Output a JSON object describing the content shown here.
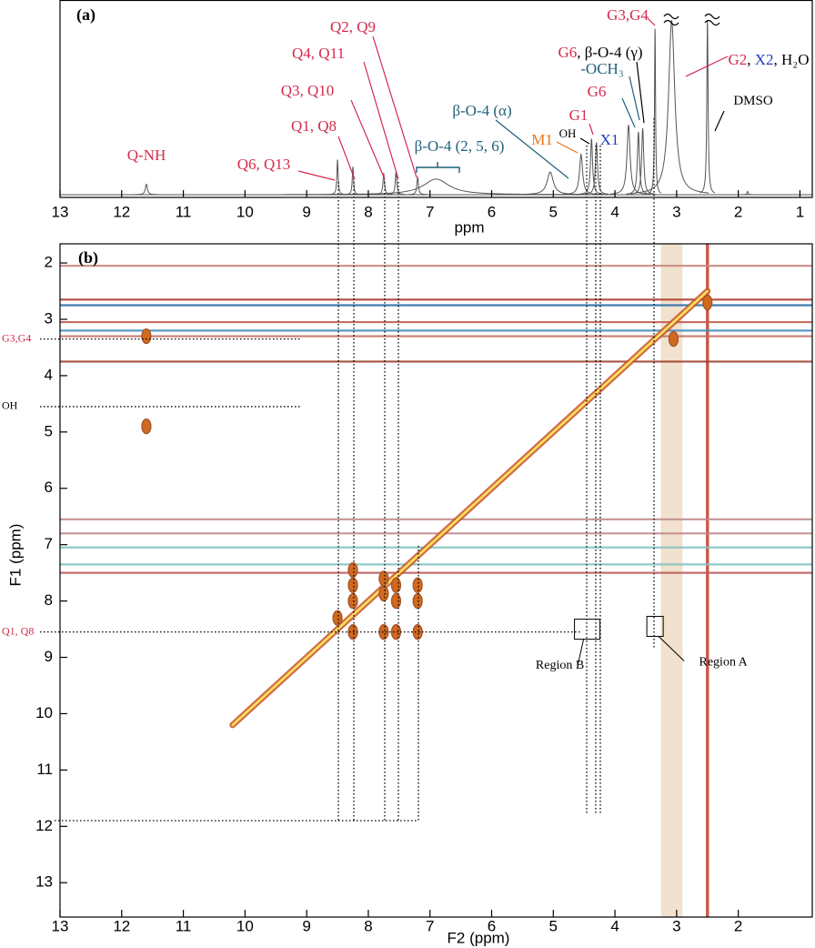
{
  "chart_data": [
    {
      "type": "spectrum",
      "panel_label": "(a)",
      "x_label": "ppm",
      "xlim": [
        13,
        0.8
      ],
      "xticks": [
        13,
        12,
        11,
        10,
        9,
        8,
        7,
        6,
        5,
        4,
        3,
        2,
        1
      ],
      "ylim": [
        0,
        100
      ],
      "color": "#555555",
      "x": [
        11.6,
        8.5,
        8.25,
        7.75,
        7.55,
        7.2,
        6.9,
        5.05,
        4.55,
        4.38,
        4.3,
        3.78,
        3.62,
        3.55,
        3.35,
        3.08,
        2.5,
        1.85
      ],
      "values": [
        6,
        20,
        16,
        12,
        13,
        10,
        9,
        13,
        23,
        32,
        30,
        40,
        36,
        38,
        95,
        100,
        100,
        2
      ],
      "widths": [
        0.02,
        0.012,
        0.012,
        0.015,
        0.015,
        0.015,
        0.25,
        0.06,
        0.03,
        0.02,
        0.02,
        0.03,
        0.02,
        0.02,
        0.01,
        0.06,
        0.012,
        0.01
      ],
      "annotations": [
        {
          "parts": [
            {
              "text": "Q-NH",
              "color": "#d42a4c"
            }
          ]
        },
        {
          "parts": [
            {
              "text": "Q6, Q13",
              "color": "#d42a4c"
            }
          ]
        },
        {
          "parts": [
            {
              "text": "Q1, Q8",
              "color": "#d42a4c"
            }
          ]
        },
        {
          "parts": [
            {
              "text": "Q3, Q10",
              "color": "#d42a4c"
            }
          ]
        },
        {
          "parts": [
            {
              "text": "Q4, Q11",
              "color": "#d42a4c"
            }
          ]
        },
        {
          "parts": [
            {
              "text": "Q2, Q9",
              "color": "#d42a4c"
            }
          ]
        },
        {
          "parts": [
            {
              "text": "β-O-4 (2, 5, 6)",
              "color": "#1f5f7a"
            }
          ]
        },
        {
          "parts": [
            {
              "text": "β-O-4 (α)",
              "color": "#1f5f7a"
            }
          ]
        },
        {
          "parts": [
            {
              "text": "M1",
              "color": "#e8731a"
            }
          ]
        },
        {
          "parts": [
            {
              "text": "OH",
              "color": "#000000"
            }
          ]
        },
        {
          "parts": [
            {
              "text": "G1",
              "color": "#d42a4c"
            }
          ]
        },
        {
          "parts": [
            {
              "text": "X1",
              "color": "#1f3fbf"
            }
          ]
        },
        {
          "parts": [
            {
              "text": "G6",
              "color": "#d42a4c"
            }
          ]
        },
        {
          "parts": [
            {
              "text": "-OCH₃",
              "color": "#1f5f7a"
            }
          ]
        },
        {
          "parts": [
            {
              "text": "G6",
              "color": "#d42a4c"
            },
            {
              "text": ", β-O-4 (γ)",
              "color": "#000000"
            }
          ]
        },
        {
          "parts": [
            {
              "text": "G3,G4",
              "color": "#d42a4c"
            }
          ]
        },
        {
          "parts": [
            {
              "text": "G2",
              "color": "#d42a4c"
            },
            {
              "text": ", ",
              "color": "#000000"
            },
            {
              "text": "X2",
              "color": "#1f3fbf"
            },
            {
              "text": ", H₂O",
              "color": "#000000"
            }
          ]
        },
        {
          "parts": [
            {
              "text": "DMSO",
              "color": "#000000"
            }
          ]
        }
      ]
    },
    {
      "type": "contour",
      "panel_label": "(b)",
      "x_label": "F2 (ppm)",
      "y_label": "F1 (ppm)",
      "xlim": [
        13,
        0.8
      ],
      "xticks": [
        13,
        12,
        11,
        10,
        9,
        8,
        7,
        6,
        5,
        4,
        3,
        2
      ],
      "ylim": [
        1.66,
        13.61
      ],
      "yticks": [
        2,
        3,
        4,
        5,
        6,
        7,
        8,
        9,
        10,
        11,
        12,
        13
      ],
      "diagonal": [
        10.2,
        2.5
      ],
      "cross_peaks": {
        "x": [
          8.25,
          8.25,
          8.25,
          7.75,
          7.75,
          7.55,
          7.55,
          7.2,
          7.2,
          8.5,
          8.25,
          7.75,
          7.55,
          7.2,
          11.6,
          11.6,
          3.05,
          2.5
        ],
        "y": [
          7.45,
          7.72,
          8.0,
          7.6,
          7.87,
          7.72,
          8.0,
          7.72,
          8.0,
          8.3,
          8.55,
          8.55,
          8.55,
          8.55,
          3.3,
          4.9,
          3.35,
          2.7
        ]
      },
      "horizontal_streaks": {
        "y": [
          2.05,
          2.65,
          2.75,
          3.05,
          3.2,
          3.3,
          3.75,
          6.55,
          6.8,
          7.05,
          7.35,
          7.5
        ],
        "colors": [
          "#c88a80",
          "#b03a2e",
          "#2e6fa8",
          "#c06050",
          "#4a8ec0",
          "#c07060",
          "#a04030",
          "#c08a8a",
          "#c08a8a",
          "#86c4c4",
          "#86c4c4",
          "#c06060"
        ]
      },
      "vertical_streaks": {
        "x": [
          3.08,
          2.5
        ],
        "widths": [
          0.35,
          0.05
        ],
        "colors": [
          "#efdcc4",
          "#c0392b"
        ]
      },
      "guide_labels": [
        {
          "text": "G3,G4",
          "color": "#d42a4c",
          "y": 3.35
        },
        {
          "text": "OH",
          "color": "#000000",
          "y": 4.55
        },
        {
          "text": "Q1, Q8",
          "color": "#d42a4c",
          "y": 8.55
        }
      ],
      "regions": [
        {
          "text": "Region B",
          "x": 4.45,
          "y": 8.5
        },
        {
          "text": "Region A",
          "x": 3.35,
          "y": 8.45
        }
      ]
    }
  ]
}
